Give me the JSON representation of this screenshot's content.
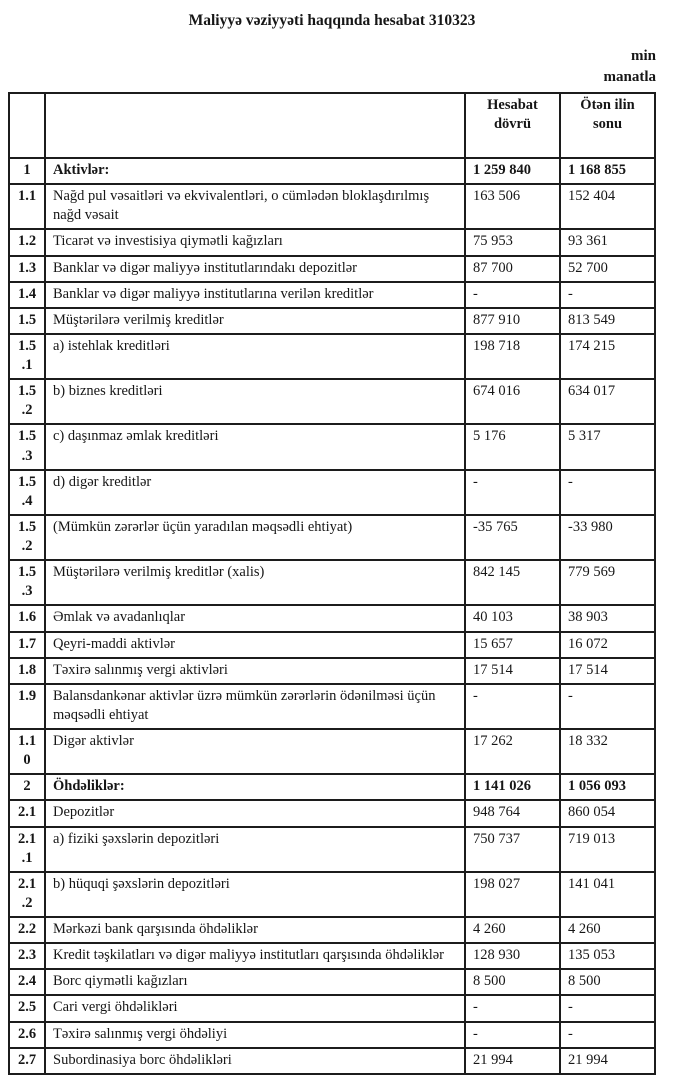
{
  "document": {
    "title": "Maliyyə vəziyyəti haqqında hesabat 310323",
    "unit_note": "min manatla"
  },
  "table": {
    "columns": [
      "",
      "",
      "Hesabat dövrü",
      "Ötən ilin sonu"
    ],
    "rows": [
      {
        "num": "1",
        "label": "Aktivlər:",
        "current": "1 259 840",
        "previous": "1 168 855",
        "bold": true
      },
      {
        "num": "1.1",
        "label": "Nağd pul vəsaitləri və ekvivalentləri, o cümlədən bloklaşdırılmış nağd vəsait",
        "current": "163 506",
        "previous": "152 404",
        "bold": false
      },
      {
        "num": "1.2",
        "label": "Ticarət və investisiya qiymətli kağızları",
        "current": "75 953",
        "previous": "93 361",
        "bold": false
      },
      {
        "num": "1.3",
        "label": "Banklar və digər maliyyə institutlarındakı depozitlər",
        "current": "87 700",
        "previous": "52 700",
        "bold": false
      },
      {
        "num": "1.4",
        "label": "Banklar və digər maliyyə institutlarına verilən kreditlər",
        "current": "-",
        "previous": "-",
        "bold": false
      },
      {
        "num": "1.5",
        "label": "Müştərilərə verilmiş kreditlər",
        "current": "877 910",
        "previous": "813 549",
        "bold": false
      },
      {
        "num": "1.5.1",
        "label": "a) istehlak kreditləri",
        "current": "198 718",
        "previous": "174 215",
        "bold": false
      },
      {
        "num": "1.5.2",
        "label": "b) biznes kreditləri",
        "current": "674 016",
        "previous": "634 017",
        "bold": false
      },
      {
        "num": "1.5.3",
        "label": "c) daşınmaz əmlak kreditləri",
        "current": "5 176",
        "previous": "5 317",
        "bold": false
      },
      {
        "num": "1.5.4",
        "label": "d) digər kreditlər",
        "current": "-",
        "previous": "-",
        "bold": false
      },
      {
        "num": "1.5.2",
        "label": "(Mümkün zərərlər üçün yaradılan məqsədli ehtiyat)",
        "current": "-35 765",
        "previous": "-33 980",
        "bold": false
      },
      {
        "num": "1.5.3",
        "label": "Müştərilərə verilmiş kreditlər (xalis)",
        "current": "842 145",
        "previous": "779 569",
        "bold": false
      },
      {
        "num": "1.6",
        "label": "Əmlak və avadanlıqlar",
        "current": "40 103",
        "previous": "38 903",
        "bold": false
      },
      {
        "num": "1.7",
        "label": "Qeyri-maddi aktivlər",
        "current": "15 657",
        "previous": "16 072",
        "bold": false
      },
      {
        "num": "1.8",
        "label": "Təxirə salınmış vergi aktivləri",
        "current": "17 514",
        "previous": "17 514",
        "bold": false
      },
      {
        "num": "1.9",
        "label": "Balansdankənar aktivlər üzrə mümkün zərərlərin ödənilməsi üçün məqsədli ehtiyat",
        "current": "-",
        "previous": "-",
        "bold": false
      },
      {
        "num": "1.10",
        "label": "Digər aktivlər",
        "current": "17 262",
        "previous": "18 332",
        "bold": false
      },
      {
        "num": "2",
        "label": "Öhdəliklər:",
        "current": "1 141 026",
        "previous": "1 056 093",
        "bold": true
      },
      {
        "num": "2.1",
        "label": "Depozitlər",
        "current": "948 764",
        "previous": "860 054",
        "bold": false
      },
      {
        "num": "2.1.1",
        "label": "a) fiziki şəxslərin depozitləri",
        "current": "750 737",
        "previous": "719 013",
        "bold": false
      },
      {
        "num": "2.1.2",
        "label": "b) hüquqi şəxslərin depozitləri",
        "current": "198 027",
        "previous": "141 041",
        "bold": false
      },
      {
        "num": "2.2",
        "label": "Mərkəzi bank qarşısında öhdəliklər",
        "current": "4 260",
        "previous": "4 260",
        "bold": false
      },
      {
        "num": "2.3",
        "label": "Kredit təşkilatları və digər maliyyə institutları qarşısında öhdəliklər",
        "current": "128 930",
        "previous": "135 053",
        "bold": false
      },
      {
        "num": "2.4",
        "label": "Borc qiymətli kağızları",
        "current": "8 500",
        "previous": "8 500",
        "bold": false
      },
      {
        "num": "2.5",
        "label": "Cari vergi öhdəlikləri",
        "current": "-",
        "previous": "-",
        "bold": false
      },
      {
        "num": "2.6",
        "label": "Təxirə salınmış vergi öhdəliyi",
        "current": "-",
        "previous": "-",
        "bold": false
      },
      {
        "num": "2.7",
        "label": "Subordinasiya borc öhdəlikləri",
        "current": "21 994",
        "previous": "21 994",
        "bold": false
      }
    ]
  }
}
